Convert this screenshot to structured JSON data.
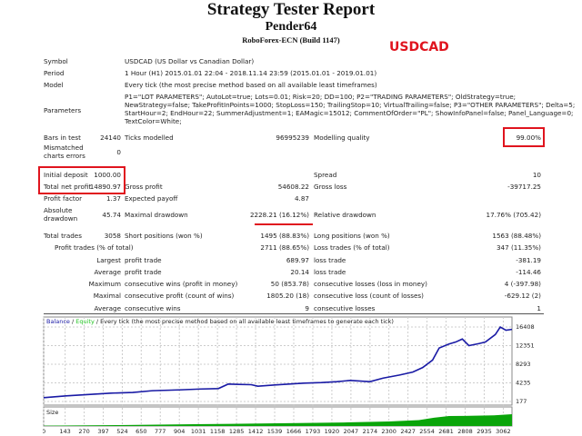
{
  "header": {
    "title": "Strategy Tester Report",
    "expert_name": "Pender64",
    "server": "RoboForex-ECN (Build 1147)",
    "symbol_tag": "USDCAD"
  },
  "info": {
    "symbol_label": "Symbol",
    "symbol_value": "USDCAD (US Dollar vs Canadian Dollar)",
    "period_label": "Period",
    "period_value": "1 Hour (H1) 2015.01.01 22:04 - 2018.11.14 23:59 (2015.01.01 - 2019.01.01)",
    "model_label": "Model",
    "model_value": "Every tick (the most precise method based on all available least timeframes)",
    "parameters_label": "Parameters",
    "parameters_lines": [
      "P1=\"LOT PARAMETERS\"; AutoLot=true; Lots=0.01; Risk=20; DD=100; P2=\"TRADING PARAMETERS\"; OldStrategy=true;",
      "NewStrategy=false; TakeProfitInPoints=1000; StopLoss=150; TrailingStop=10; VirtualTrailing=false; P3=\"OTHER PARAMETERS\"; Delta=5;",
      "StartHour=2; EndHour=22; SummerAdjustment=1; EAMagic=15012; CommentOfOrder=\"PL\"; ShowInfoPanel=false; Panel_Language=0;",
      "TextColor=White;"
    ],
    "bars_label": "Bars in test",
    "bars_value": "24140",
    "ticks_label": "Ticks modelled",
    "ticks_value": "96995239",
    "quality_label": "Modelling quality",
    "quality_value": "99.00%",
    "mismatch_label_1": "Mismatched",
    "mismatch_label_2": "charts errors",
    "mismatch_value": "0"
  },
  "stats": [
    {
      "top": 188,
      "cells": [
        [
          "Initial deposit",
          "1000.00"
        ],
        [
          "",
          ""
        ],
        [
          "Spread",
          "10"
        ]
      ]
    },
    {
      "top": 201,
      "cells": [
        [
          "Total net profit",
          "14890.97"
        ],
        [
          "Gross profit",
          "54608.22"
        ],
        [
          "Gross loss",
          "-39717.25"
        ]
      ]
    },
    {
      "top": 214,
      "cells": [
        [
          "Profit factor",
          "1.37"
        ],
        [
          "Expected payoff",
          "4.87"
        ],
        [
          "",
          ""
        ]
      ]
    },
    {
      "top": 232,
      "cells": [
        [
          "Absolute drawdown",
          "45.74"
        ],
        [
          "Maximal drawdown",
          "2228.21 (16.12%)"
        ],
        [
          "Relative drawdown",
          "17.76% (705.42)"
        ]
      ]
    },
    {
      "top": 255,
      "cells": [
        [
          "Total trades",
          "3058"
        ],
        [
          "Short positions (won %)",
          "1495 (88.83%)"
        ],
        [
          "Long positions (won %)",
          "1563 (88.48%)"
        ]
      ]
    },
    {
      "top": 268,
      "cells": [
        [
          "",
          "Profit trades (% of total)"
        ],
        [
          "",
          "2711 (88.65%)"
        ],
        [
          "Loss trades (% of total)",
          "347 (11.35%)"
        ]
      ]
    },
    {
      "top": 282,
      "cells": [
        [
          "",
          "Largest"
        ],
        [
          "profit trade",
          "689.97"
        ],
        [
          "loss trade",
          "-381.19"
        ]
      ]
    },
    {
      "top": 295,
      "cells": [
        [
          "",
          "Average"
        ],
        [
          "profit trade",
          "20.14"
        ],
        [
          "loss trade",
          "-114.46"
        ]
      ]
    },
    {
      "top": 308,
      "cells": [
        [
          "",
          "Maximum"
        ],
        [
          "consecutive wins (profit in money)",
          "50 (853.78)"
        ],
        [
          "consecutive losses (loss in money)",
          "4 (-397.98)"
        ]
      ]
    },
    {
      "top": 321,
      "cells": [
        [
          "",
          "Maximal"
        ],
        [
          "consecutive profit (count of wins)",
          "1805.20 (18)"
        ],
        [
          "consecutive loss (count of losses)",
          "-629.12 (2)"
        ]
      ]
    },
    {
      "top": 335,
      "cells": [
        [
          "",
          "Average"
        ],
        [
          "consecutive wins",
          "9"
        ],
        [
          "consecutive losses",
          "1"
        ]
      ]
    }
  ],
  "chart_data": {
    "type": "line",
    "legend": {
      "balance": "Balance",
      "equity": "Equity",
      "sep": " / ",
      "note": " / Every tick (the most precise method based on all available least timeframes to generate each tick)"
    },
    "colors": {
      "balance": "#1a1aa6",
      "equity": "#22c422",
      "size": "#0aa50a",
      "highlight": "#e0141e"
    },
    "y_ticks": [
      177,
      4235,
      8293,
      12351,
      16408
    ],
    "ylim": [
      177,
      16408
    ],
    "x_ticks": [
      0,
      143,
      270,
      397,
      524,
      650,
      777,
      904,
      1031,
      1158,
      1285,
      1412,
      1539,
      1666,
      1793,
      1920,
      2047,
      2174,
      2300,
      2427,
      2554,
      2681,
      2808,
      2935,
      3062
    ],
    "xlim": [
      0,
      3120
    ],
    "grid": true,
    "size_label": "Size",
    "balance": {
      "x": [
        0,
        150,
        300,
        450,
        593,
        725,
        900,
        1050,
        1164,
        1229,
        1300,
        1383,
        1427,
        1550,
        1734,
        1850,
        1954,
        2042,
        2174,
        2262,
        2371,
        2459,
        2525,
        2591,
        2635,
        2700,
        2745,
        2789,
        2833,
        2900,
        2943,
        3009,
        3042,
        3080,
        3120
      ],
      "y": [
        1000,
        1400,
        1700,
        2000,
        2140,
        2530,
        2700,
        2900,
        2990,
        3970,
        3900,
        3840,
        3510,
        3800,
        4170,
        4300,
        4500,
        4760,
        4500,
        5280,
        5940,
        6590,
        7570,
        9200,
        11830,
        12700,
        13130,
        13790,
        12350,
        12800,
        13130,
        14770,
        16400,
        15700,
        15890
      ]
    },
    "size": {
      "x": [
        0,
        500,
        1000,
        1500,
        2000,
        2300,
        2500,
        2600,
        2700,
        2800,
        3000,
        3120
      ],
      "y": [
        0.03,
        0.08,
        0.15,
        0.22,
        0.3,
        0.38,
        0.5,
        0.7,
        0.85,
        0.86,
        0.9,
        1.0
      ]
    }
  }
}
